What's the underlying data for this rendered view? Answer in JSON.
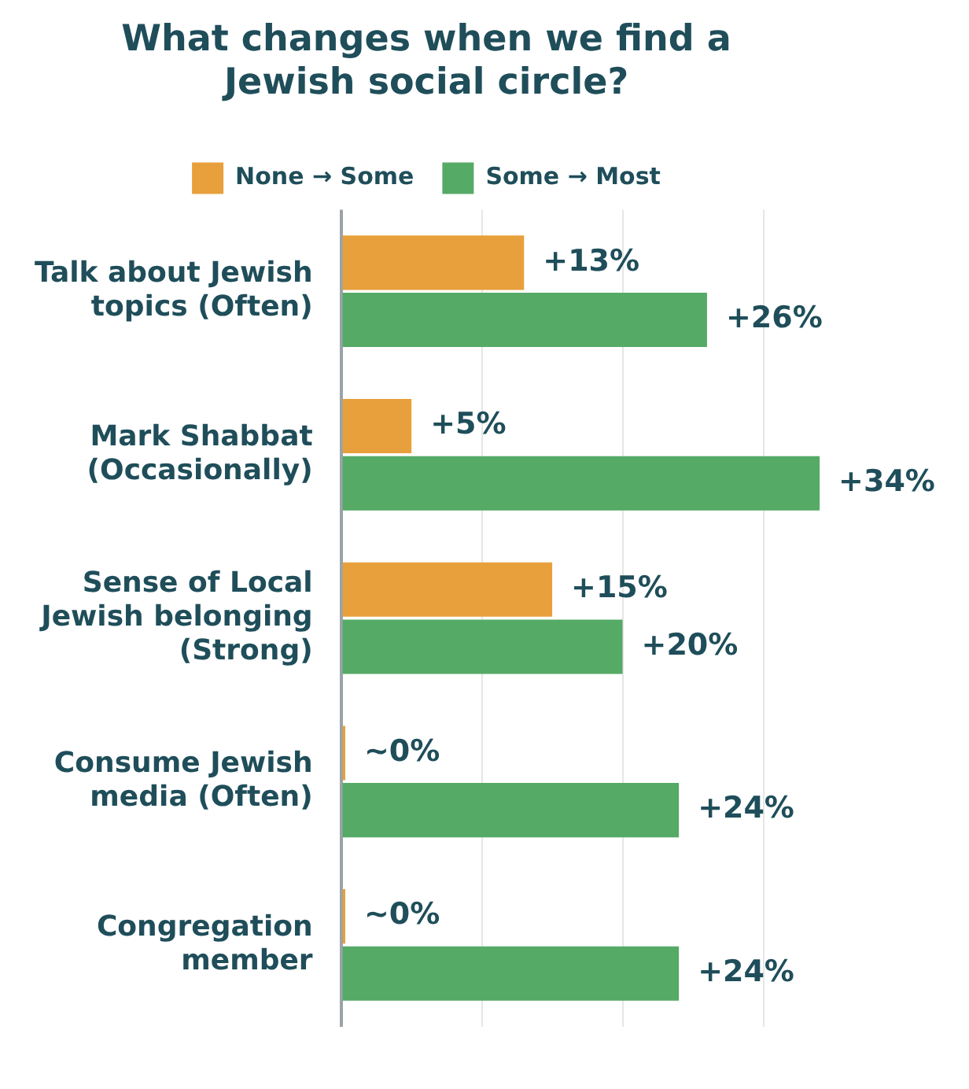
{
  "chart_data": {
    "type": "bar",
    "orientation": "horizontal",
    "title": "What changes when we find a Jewish social circle?",
    "categories": [
      "Talk about Jewish topics (Often)",
      "Mark Shabbat (Occasionally)",
      "Sense of Local Jewish belonging (Strong)",
      "Consume Jewish media (Often)",
      "Congregation member"
    ],
    "series": [
      {
        "name": "None → Some",
        "color": "#e8a03c",
        "values": [
          13,
          5,
          15,
          0.3,
          0.3
        ],
        "value_labels": [
          "+13%",
          "+5%",
          "+15%",
          "~0%",
          "~0%"
        ]
      },
      {
        "name": "Some → Most",
        "color": "#55aa66",
        "values": [
          26,
          34,
          20,
          24,
          24
        ],
        "value_labels": [
          "+26%",
          "+34%",
          "+20%",
          "+24%",
          "+24%"
        ]
      }
    ],
    "xticks": [
      {
        "value": 0,
        "label": null
      },
      {
        "value": 10,
        "label": null
      },
      {
        "value": 20,
        "label": null
      },
      {
        "value": 30,
        "label": null
      }
    ],
    "grid": "x",
    "legend": "top",
    "tick_labels": "y"
  }
}
